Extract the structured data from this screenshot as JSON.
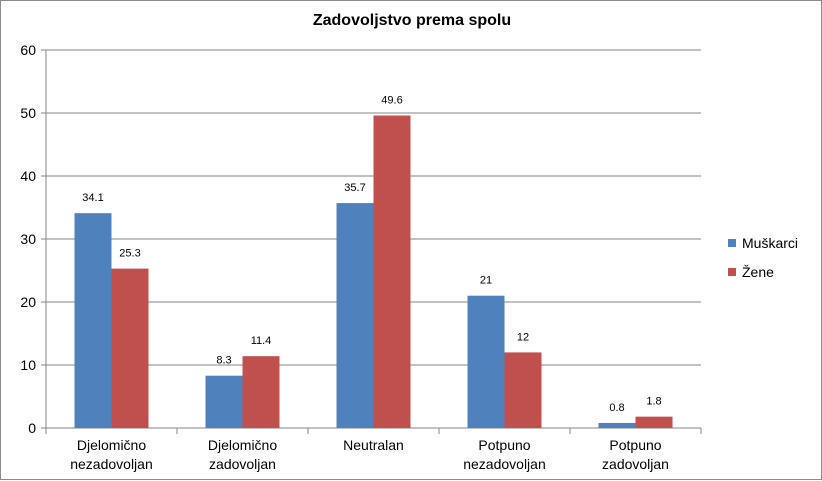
{
  "chart_data": {
    "type": "bar",
    "title": "Zadovoljstvo prema spolu",
    "xlabel": "",
    "ylabel": "",
    "ylim": [
      0,
      60
    ],
    "yticks": [
      0,
      10,
      20,
      30,
      40,
      50,
      60
    ],
    "grid": true,
    "legend_position": "right",
    "categories": [
      [
        "Djelomično",
        "nezadovoljan"
      ],
      [
        "Djelomično",
        "zadovoljan"
      ],
      [
        "Neutralan"
      ],
      [
        "Potpuno",
        "nezadovoljan"
      ],
      [
        "Potpuno",
        "zadovoljan"
      ]
    ],
    "series": [
      {
        "name": "Muškarci",
        "color": "#4f81bd",
        "values": [
          34.1,
          8.3,
          35.7,
          21,
          0.8
        ],
        "labels": [
          "34.1",
          "8.3",
          "35.7",
          "21",
          "0.8"
        ]
      },
      {
        "name": "Žene",
        "color": "#c0504d",
        "values": [
          25.3,
          11.4,
          49.6,
          12,
          1.8
        ],
        "labels": [
          "25.3",
          "11.4",
          "49.6",
          "12",
          "1.8"
        ]
      }
    ]
  }
}
